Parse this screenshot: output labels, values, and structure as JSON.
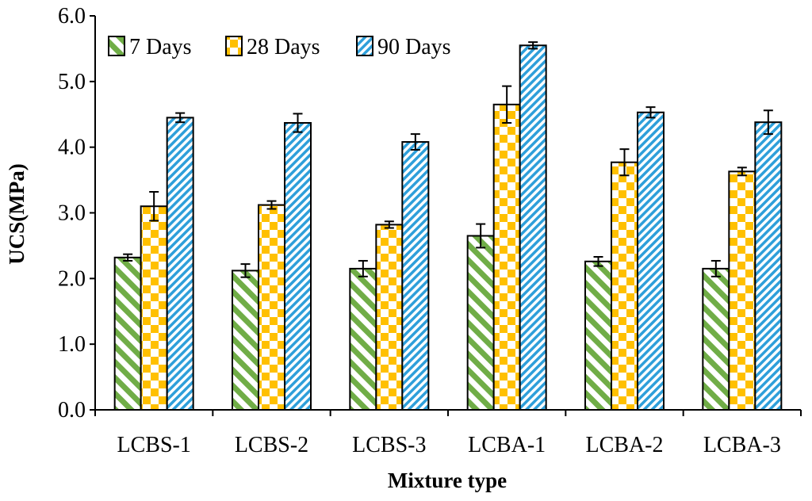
{
  "chart_data": {
    "type": "bar",
    "title": "",
    "xlabel": "Mixture type",
    "ylabel": "UCS(MPa)",
    "ylim": [
      0,
      6
    ],
    "yticks": [
      "0.0",
      "1.0",
      "2.0",
      "3.0",
      "4.0",
      "5.0",
      "6.0"
    ],
    "grid": false,
    "legend_position": "top-left",
    "categories": [
      "LCBS-1",
      "LCBS-2",
      "LCBS-3",
      "LCBA-1",
      "LCBA-2",
      "LCBA-3"
    ],
    "series": [
      {
        "name": "7 Days",
        "pattern": "diagonal-stripes",
        "color": "#70AD47",
        "values": [
          2.32,
          2.12,
          2.15,
          2.65,
          2.26,
          2.15
        ],
        "errors": [
          0.05,
          0.1,
          0.12,
          0.18,
          0.07,
          0.12
        ]
      },
      {
        "name": "28 Days",
        "pattern": "checkerboard",
        "color": "#FFC000",
        "values": [
          3.1,
          3.12,
          2.82,
          4.65,
          3.77,
          3.63
        ],
        "errors": [
          0.22,
          0.06,
          0.05,
          0.28,
          0.2,
          0.06
        ]
      },
      {
        "name": "90 Days",
        "pattern": "diagonal-stripes",
        "color": "#2E9FDA",
        "values": [
          4.45,
          4.37,
          4.08,
          5.55,
          4.53,
          4.38
        ],
        "errors": [
          0.07,
          0.14,
          0.12,
          0.05,
          0.08,
          0.18
        ]
      }
    ]
  }
}
